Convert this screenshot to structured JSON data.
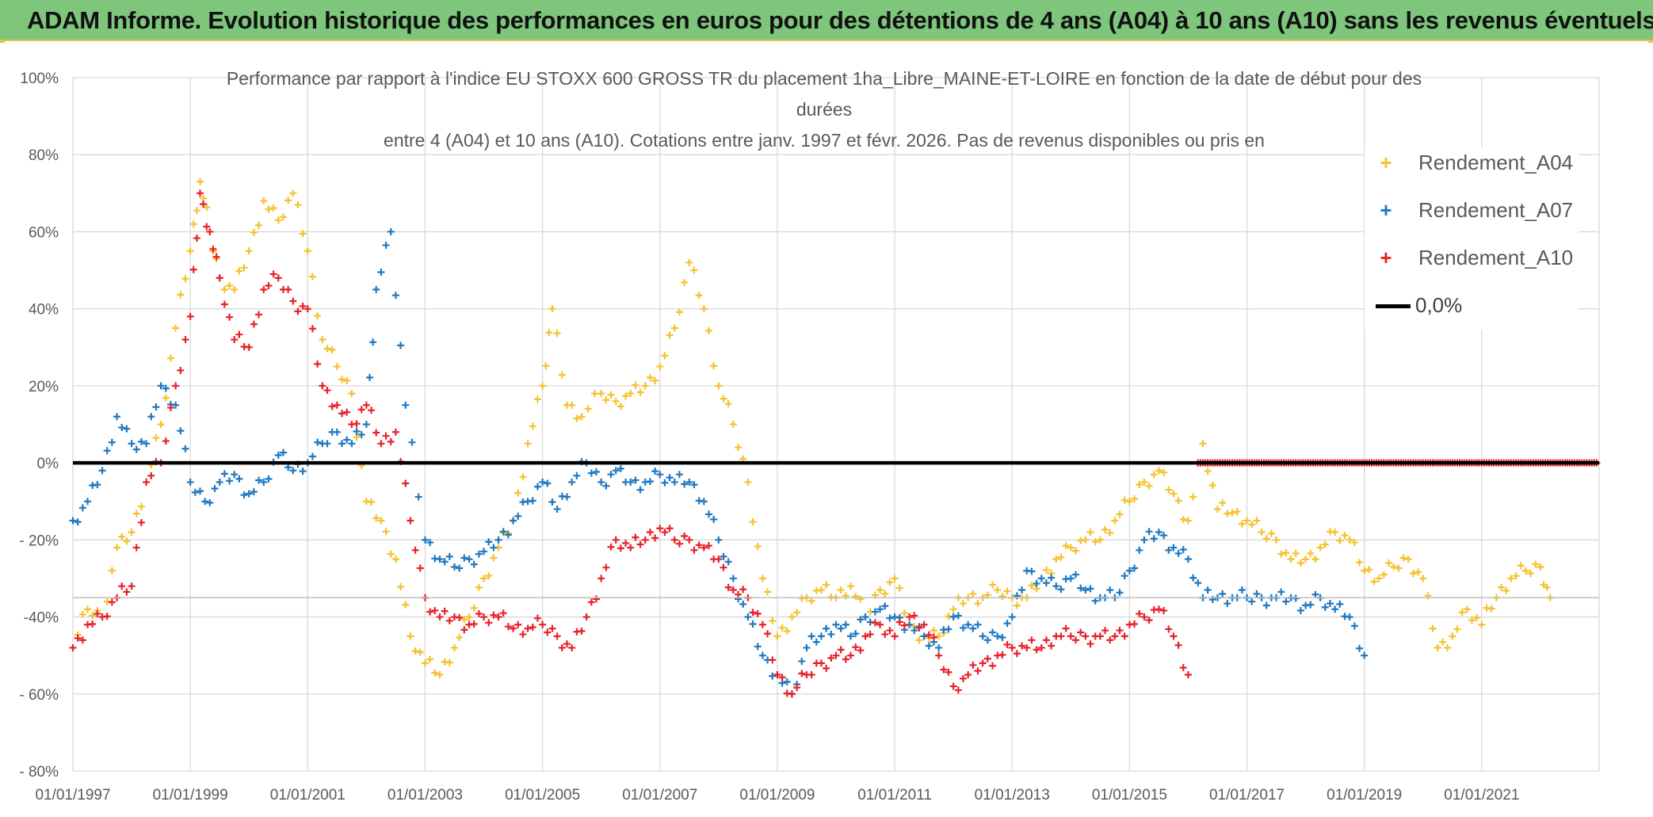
{
  "banner": {
    "title": "ADAM Informe. Evolution historique des performances en euros pour des détentions de 4 ans (A04) à 10 ans (A10) sans les revenus éventuels"
  },
  "chart_data": {
    "type": "scatter",
    "title": "Performance par rapport à l'indice EU STOXX 600 GROSS TR  du placement 1ha_Libre_MAINE-ET-LOIRE en fonction de la date de début pour des durées entre 4 (A04) et 10 ans (A10). Cotations entre janv. 1997 et févr. 2026. Pas de revenus disponibles ou pris en",
    "title_lines": [
      "Performance par rapport à l'indice EU STOXX 600 GROSS TR  du placement 1ha_Libre_MAINE-ET-LOIRE en fonction de la date de début pour des",
      "durées",
      "entre 4 (A04) et 10 ans (A10). Cotations entre janv. 1997 et févr. 2026. Pas de revenus disponibles ou pris en"
    ],
    "xlabel": "",
    "ylabel": "",
    "x_range": [
      "1997-01-01",
      "2023-01-01"
    ],
    "x_ticks": [
      "01/01/1997",
      "01/01/1999",
      "01/01/2001",
      "01/01/2003",
      "01/01/2005",
      "01/01/2007",
      "01/01/2009",
      "01/01/2011",
      "01/01/2013",
      "01/01/2015",
      "01/01/2017",
      "01/01/2019",
      "01/01/2021"
    ],
    "y_range": [
      -80,
      100
    ],
    "y_ticks": [
      "100%",
      "80%",
      "60%",
      "40%",
      "20%",
      "0%",
      "- 20%",
      "-40%",
      "- 60%",
      "- 80%"
    ],
    "y_unit": "%",
    "grid": "vertical and horizontal",
    "legend_position": "right",
    "reference_line": {
      "name": "0,0%",
      "value": 0,
      "color": "#000000"
    },
    "colors": {
      "A04": "#f5c12e",
      "A07": "#1f78c1",
      "A10": "#e8212a"
    },
    "marker": "plus",
    "series": [
      {
        "name": "Rendement_A04",
        "color": "#f5c12e",
        "x": [
          "1997-01",
          "1997-04",
          "1997-07",
          "1997-10",
          "1998-01",
          "1998-04",
          "1998-07",
          "1998-10",
          "1999-01",
          "1999-03",
          "1999-05",
          "1999-07",
          "1999-10",
          "2000-01",
          "2000-04",
          "2000-07",
          "2000-10",
          "2001-01",
          "2001-04",
          "2001-07",
          "2001-10",
          "2002-01",
          "2002-04",
          "2002-07",
          "2002-10",
          "2003-01",
          "2003-04",
          "2003-07",
          "2003-10",
          "2004-01",
          "2004-04",
          "2004-07",
          "2004-10",
          "2005-01",
          "2005-03",
          "2005-06",
          "2005-09",
          "2006-01",
          "2006-04",
          "2006-07",
          "2006-10",
          "2007-01",
          "2007-04",
          "2007-07",
          "2007-10",
          "2008-01",
          "2008-04",
          "2008-07",
          "2008-10",
          "2009-01",
          "2009-04",
          "2009-07",
          "2009-10",
          "2010-01",
          "2010-04",
          "2010-07",
          "2010-10",
          "2011-01",
          "2011-04",
          "2011-07",
          "2011-10",
          "2012-01",
          "2012-04",
          "2012-07",
          "2012-10",
          "2013-01",
          "2013-04",
          "2013-07",
          "2013-10",
          "2014-01",
          "2014-04",
          "2014-07",
          "2014-10",
          "2015-01",
          "2015-04",
          "2015-07",
          "2015-10",
          "2016-01",
          "2016-04",
          "2016-07",
          "2016-10",
          "2017-01",
          "2017-04",
          "2017-07",
          "2017-10",
          "2018-01",
          "2018-04",
          "2018-07",
          "2018-10",
          "2019-01",
          "2019-04",
          "2019-07",
          "2019-10",
          "2020-01",
          "2020-04",
          "2020-07",
          "2020-10",
          "2021-01",
          "2021-04",
          "2021-07",
          "2021-10",
          "2022-01",
          "2022-03"
        ],
        "values": [
          -48,
          -38,
          -40,
          -22,
          -18,
          -5,
          10,
          35,
          55,
          73,
          60,
          48,
          45,
          55,
          68,
          63,
          70,
          55,
          32,
          25,
          18,
          -10,
          -15,
          -25,
          -45,
          -52,
          -55,
          -48,
          -40,
          -30,
          -22,
          -15,
          5,
          20,
          40,
          15,
          12,
          18,
          16,
          18,
          20,
          25,
          35,
          52,
          40,
          20,
          10,
          -5,
          -30,
          -45,
          -40,
          -35,
          -33,
          -35,
          -32,
          -40,
          -33,
          -30,
          -42,
          -45,
          -45,
          -38,
          -35,
          -35,
          -33,
          -35,
          -35,
          -30,
          -25,
          -22,
          -20,
          -20,
          -15,
          -10,
          -5,
          -2,
          -8,
          -15,
          5,
          -12,
          -13,
          -15,
          -18,
          -20,
          -25,
          -25,
          -22,
          -18,
          -20,
          -28,
          -30,
          -27,
          -25,
          -30,
          -48,
          -45,
          -38,
          -42,
          -35,
          -30,
          -28,
          -27,
          -35
        ]
      },
      {
        "name": "Rendement_A07",
        "color": "#1f78c1",
        "x": [
          "1997-01",
          "1997-04",
          "1997-07",
          "1997-10",
          "1998-01",
          "1998-04",
          "1998-07",
          "1998-10",
          "1999-01",
          "1999-04",
          "1999-07",
          "1999-10",
          "2000-01",
          "2000-04",
          "2000-07",
          "2000-10",
          "2001-01",
          "2001-04",
          "2001-07",
          "2001-10",
          "2002-01",
          "2002-03",
          "2002-06",
          "2002-09",
          "2003-01",
          "2003-04",
          "2003-07",
          "2003-10",
          "2004-01",
          "2004-04",
          "2004-07",
          "2004-10",
          "2005-01",
          "2005-04",
          "2005-07",
          "2005-10",
          "2006-01",
          "2006-04",
          "2006-07",
          "2006-10",
          "2007-01",
          "2007-04",
          "2007-07",
          "2007-10",
          "2008-01",
          "2008-04",
          "2008-07",
          "2008-10",
          "2009-01",
          "2009-04",
          "2009-07",
          "2009-10",
          "2010-01",
          "2010-04",
          "2010-07",
          "2010-10",
          "2011-01",
          "2011-04",
          "2011-07",
          "2011-10",
          "2012-01",
          "2012-04",
          "2012-07",
          "2012-10",
          "2013-01",
          "2013-04",
          "2013-07",
          "2013-10",
          "2014-01",
          "2014-04",
          "2014-07",
          "2014-10",
          "2015-01",
          "2015-04",
          "2015-07",
          "2015-10",
          "2016-01",
          "2016-04",
          "2016-07",
          "2016-10",
          "2017-01",
          "2017-04",
          "2017-07",
          "2017-10",
          "2018-01",
          "2018-04",
          "2018-07",
          "2018-10",
          "2019-01"
        ],
        "values": [
          -15,
          -10,
          -2,
          12,
          5,
          5,
          20,
          15,
          -5,
          -10,
          -5,
          -3,
          -8,
          -5,
          2,
          -2,
          0,
          5,
          8,
          5,
          10,
          45,
          60,
          15,
          -20,
          -25,
          -27,
          -25,
          -23,
          -20,
          -15,
          -10,
          -5,
          -12,
          -5,
          0,
          -5,
          -2,
          -5,
          -5,
          -3,
          -5,
          -5,
          -10,
          -20,
          -30,
          -40,
          -50,
          -55,
          -60,
          -48,
          -45,
          -42,
          -45,
          -40,
          -38,
          -40,
          -42,
          -45,
          -48,
          -40,
          -42,
          -45,
          -45,
          -40,
          -28,
          -30,
          -32,
          -30,
          -33,
          -35,
          -35,
          -28,
          -20,
          -18,
          -22,
          -25,
          -35,
          -35,
          -35,
          -35,
          -35,
          -35,
          -35,
          -37,
          -35,
          -38,
          -40,
          -50
        ]
      },
      {
        "name": "Rendement_A10",
        "color": "#e8212a",
        "x": [
          "1997-01",
          "1997-04",
          "1997-07",
          "1997-10",
          "1998-01",
          "1998-04",
          "1998-07",
          "1998-10",
          "1999-01",
          "1999-03",
          "1999-05",
          "1999-07",
          "1999-10",
          "2000-01",
          "2000-04",
          "2000-07",
          "2000-10",
          "2001-01",
          "2001-04",
          "2001-07",
          "2001-10",
          "2002-01",
          "2002-04",
          "2002-07",
          "2002-10",
          "2003-01",
          "2003-04",
          "2003-07",
          "2003-10",
          "2004-01",
          "2004-04",
          "2004-07",
          "2004-10",
          "2005-01",
          "2005-04",
          "2005-07",
          "2005-10",
          "2006-01",
          "2006-04",
          "2006-07",
          "2006-10",
          "2007-01",
          "2007-04",
          "2007-07",
          "2007-10",
          "2008-01",
          "2008-04",
          "2008-07",
          "2008-10",
          "2009-01",
          "2009-04",
          "2009-07",
          "2009-10",
          "2010-01",
          "2010-04",
          "2010-07",
          "2010-10",
          "2011-01",
          "2011-04",
          "2011-07",
          "2011-10",
          "2012-01",
          "2012-04",
          "2012-07",
          "2012-10",
          "2013-01",
          "2013-04",
          "2013-07",
          "2013-10",
          "2014-01",
          "2014-04",
          "2014-07",
          "2014-10",
          "2015-01",
          "2015-04",
          "2015-07",
          "2015-10",
          "2016-01"
        ],
        "values": [
          -48,
          -42,
          -40,
          -35,
          -32,
          -5,
          0,
          20,
          38,
          70,
          60,
          48,
          32,
          30,
          45,
          48,
          42,
          40,
          20,
          15,
          10,
          15,
          5,
          8,
          -15,
          -35,
          -40,
          -40,
          -42,
          -40,
          -40,
          -43,
          -43,
          -42,
          -45,
          -48,
          -40,
          -30,
          -20,
          -22,
          -20,
          -17,
          -20,
          -20,
          -22,
          -25,
          -33,
          -35,
          -42,
          -55,
          -60,
          -55,
          -52,
          -50,
          -50,
          -45,
          -42,
          -45,
          -40,
          -42,
          -50,
          -58,
          -55,
          -52,
          -50,
          -48,
          -48,
          -48,
          -45,
          -45,
          -45,
          -45,
          -45,
          -42,
          -40,
          -38,
          -45,
          -55
        ],
        "flat_segment": {
          "from": "2016-03",
          "to": "2023-01",
          "value": 0
        }
      }
    ]
  }
}
